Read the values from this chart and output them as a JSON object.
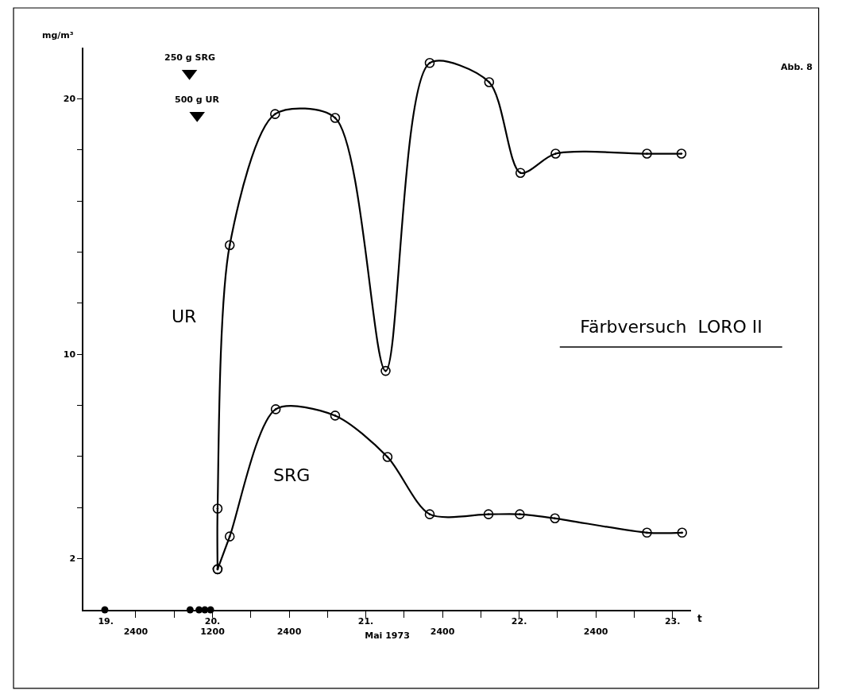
{
  "chart_data": {
    "type": "line",
    "title": "Färbversuch  LORO II",
    "xlabel": "t",
    "ylabel": "mg/m³",
    "x2label": "Mai 1973",
    "annotations": [
      "Abb. 8",
      {
        "text": "250 g SRG",
        "x": "1973-05-20T08:24",
        "y": 21.0
      },
      {
        "text": "500 g UR",
        "x": "1973-05-20T09:36",
        "y": 19.35
      }
    ],
    "series": [
      {
        "name": "UR",
        "color": "#000000",
        "marker": "circle",
        "x": [
          "1973-05-20T12:48",
          "1973-05-20T12:48",
          "1973-05-20T14:42",
          "1973-05-20T21:48",
          "1973-05-21T07:12",
          "1973-05-21T15:06",
          "1973-05-21T22:00",
          "1973-05-22T07:18",
          "1973-05-22T12:12",
          "1973-05-22T17:42",
          "1973-05-23T08:00",
          "1973-05-23T13:24"
        ],
        "values": [
          1.59,
          3.96,
          14.27,
          19.4,
          19.25,
          9.35,
          21.4,
          20.65,
          17.1,
          17.85,
          17.85,
          17.85
        ]
      },
      {
        "name": "SRG",
        "color": "#000000",
        "marker": "circle",
        "x": [
          "1973-05-20T12:48",
          "1973-05-20T14:42",
          "1973-05-20T21:54",
          "1973-05-21T07:12",
          "1973-05-21T15:24",
          "1973-05-21T22:00",
          "1973-05-22T07:12",
          "1973-05-22T12:06",
          "1973-05-22T17:36",
          "1973-05-23T08:00",
          "1973-05-23T13:30"
        ],
        "values": [
          1.59,
          2.87,
          7.85,
          7.6,
          5.98,
          3.74,
          3.74,
          3.74,
          3.58,
          3.02,
          3.02
        ]
      },
      {
        "color": "#000000",
        "type": "scatter",
        "marker": "circle",
        "x": [
          "1973-05-19T19:09",
          "1973-05-20T08:30",
          "1973-05-20T09:54",
          "1973-05-20T10:48",
          "1973-05-20T11:42"
        ],
        "values": [
          0,
          0,
          0,
          0,
          0
        ]
      },
      {
        "color": "#000000",
        "type": "scatter",
        "marker": "triangle",
        "x": [
          "1973-05-20T08:24",
          "1973-05-20T09:36"
        ],
        "values": [
          21.0,
          19.35
        ]
      }
    ],
    "xlim": [
      "1973-05-19T15:48",
      "1973-05-23T14:54"
    ],
    "xticks": [
      {
        "value": "1973-05-20T00:00",
        "label": "2400"
      },
      {
        "value": "1973-05-20T06:00",
        "label": null
      },
      {
        "value": "1973-05-20T12:00",
        "label": "1200"
      },
      {
        "value": "1973-05-20T18:00",
        "label": null
      },
      {
        "value": "1973-05-21T00:00",
        "label": "2400"
      },
      {
        "value": "1973-05-21T06:00",
        "label": null
      },
      {
        "value": "1973-05-21T12:00",
        "label": null
      },
      {
        "value": "1973-05-21T18:00",
        "label": null
      },
      {
        "value": "1973-05-22T00:00",
        "label": "2400"
      },
      {
        "value": "1973-05-22T06:00",
        "label": null
      },
      {
        "value": "1973-05-22T12:00",
        "label": null
      },
      {
        "value": "1973-05-22T18:00",
        "label": null
      },
      {
        "value": "1973-05-23T00:00",
        "label": "2400"
      },
      {
        "value": "1973-05-23T06:00",
        "label": null
      },
      {
        "value": "1973-05-23T12:00",
        "label": null
      }
    ],
    "x2lim": [
      "1973-05-19T15:48",
      "1973-05-23T14:54"
    ],
    "x2ticks": [
      {
        "value": "1973-05-19T19:18",
        "label": "19."
      },
      {
        "value": "1973-05-20T12:00",
        "label": "20."
      },
      {
        "value": "1973-05-21T12:00",
        "label": "21."
      },
      {
        "value": "1973-05-22T12:00",
        "label": "22."
      },
      {
        "value": "1973-05-23T12:00",
        "label": "23."
      }
    ],
    "ylim": [
      0,
      22
    ],
    "yticks": [
      2,
      {
        "value": 4,
        "label": null
      },
      {
        "value": 6,
        "label": null
      },
      {
        "value": 8,
        "label": null
      },
      10,
      {
        "value": 12,
        "label": null
      },
      {
        "value": 14,
        "label": null
      },
      {
        "value": 16,
        "label": null
      },
      {
        "value": 18,
        "label": null
      },
      20
    ],
    "legend": false,
    "line_style": "solid"
  }
}
